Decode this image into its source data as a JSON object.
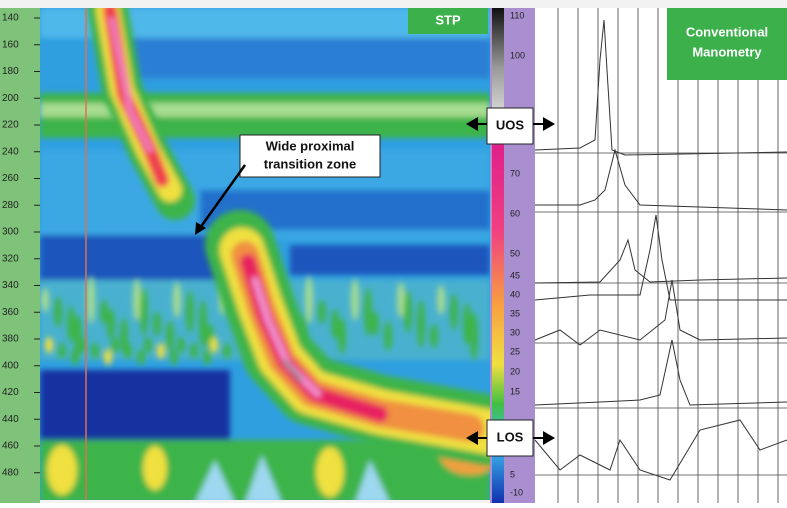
{
  "stp_panel": {
    "label": "STP",
    "y_axis_labels": [
      "140",
      "160",
      "180",
      "200",
      "220",
      "240",
      "260",
      "280",
      "300",
      "320",
      "340",
      "360",
      "380",
      "400",
      "420",
      "440",
      "460",
      "480"
    ],
    "color_scale_labels": [
      "110",
      "100",
      "70",
      "60",
      "50",
      "45",
      "40",
      "35",
      "30",
      "25",
      "20",
      "15",
      "5",
      "-10"
    ]
  },
  "conventional_panel": {
    "label": [
      "Conventional",
      "Manometry"
    ]
  },
  "annotations": {
    "transition_zone": [
      "Wide proximal",
      "transition zone"
    ],
    "uos": "UOS",
    "los": "LOS"
  }
}
